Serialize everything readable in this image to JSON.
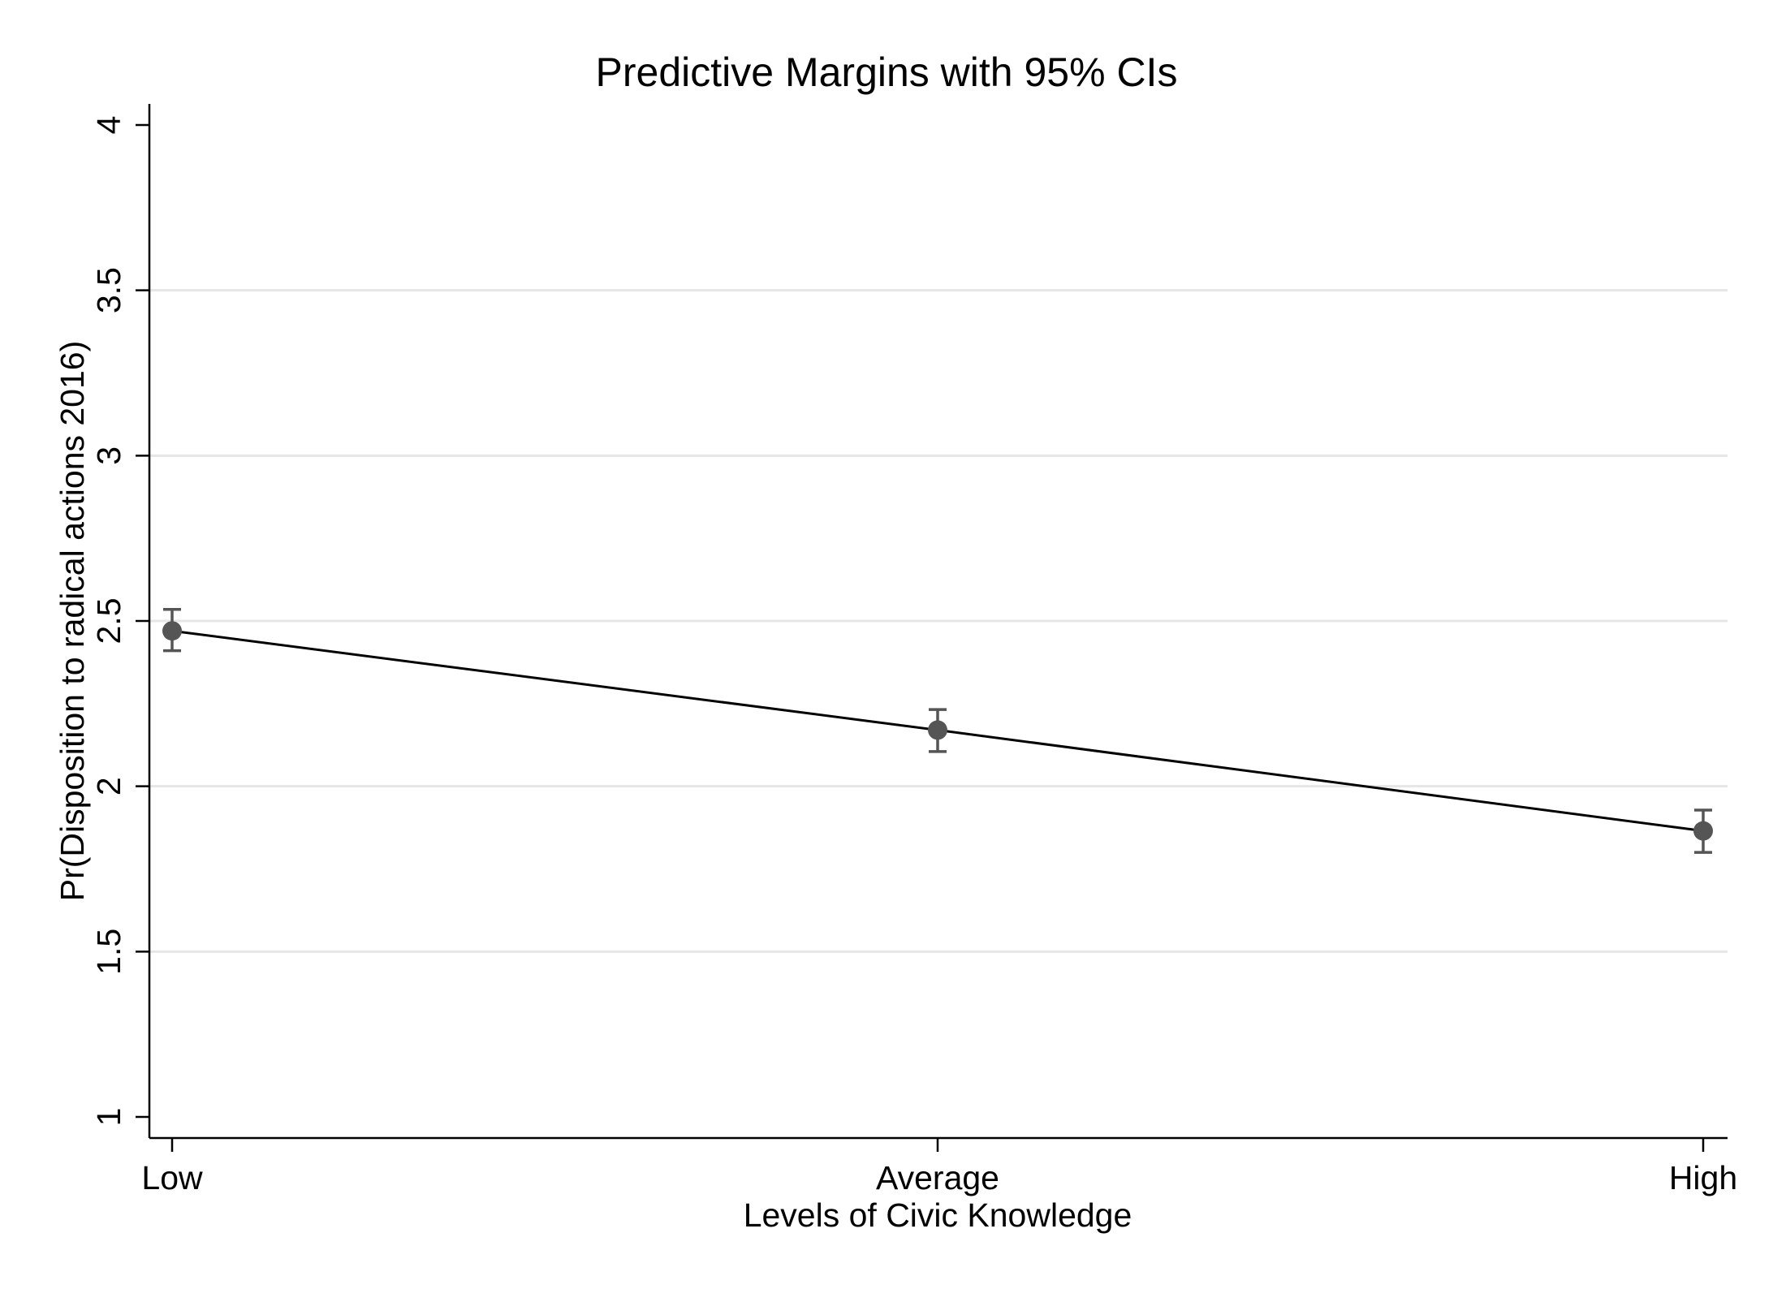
{
  "chart_data": {
    "type": "line",
    "title": "Predictive Margins with 95% CIs",
    "xlabel": "Levels of Civic Knowledge",
    "ylabel": "Pr(Disposition to radical actions 2016)",
    "categories": [
      "Low",
      "Average",
      "High"
    ],
    "series": [
      {
        "values": [
          2.47,
          2.17,
          1.865
        ],
        "ci_lower": [
          2.41,
          2.105,
          1.8
        ],
        "ci_upper": [
          2.535,
          2.232,
          1.928
        ]
      }
    ],
    "ylim": [
      1,
      4
    ],
    "yticks": [
      1,
      1.5,
      2,
      2.5,
      3,
      3.5,
      4
    ],
    "ytick_labels": [
      "1",
      "1.5",
      "2",
      "2.5",
      "3",
      "3.5",
      "4"
    ],
    "grid": true,
    "legend": "none",
    "colors": {
      "line": "#000000",
      "marker": "#555555",
      "ci": "#555555",
      "grid": "#e6e6e6",
      "axis": "#000000"
    }
  }
}
